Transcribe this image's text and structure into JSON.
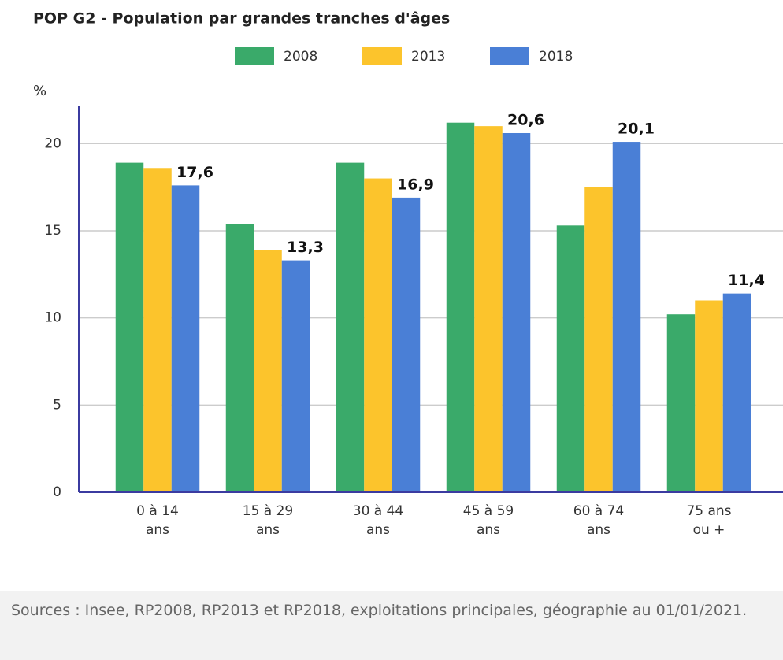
{
  "chart_data": {
    "type": "bar",
    "title": "POP G2 - Population par grandes tranches d'âges",
    "ylabel": "%",
    "categories": [
      "0 à 14 ans",
      "15 à 29 ans",
      "30 à 44 ans",
      "45 à 59 ans",
      "60 à 74 ans",
      "75 ans ou +"
    ],
    "series": [
      {
        "name": "2008",
        "color": "#3aaa6a",
        "values": [
          18.9,
          15.4,
          18.9,
          21.2,
          15.3,
          10.2
        ]
      },
      {
        "name": "2013",
        "color": "#fcc42c",
        "values": [
          18.6,
          13.9,
          18.0,
          21.0,
          17.5,
          11.0
        ]
      },
      {
        "name": "2018",
        "color": "#4a7fd6",
        "values": [
          17.6,
          13.3,
          16.9,
          20.6,
          20.1,
          11.4
        ],
        "value_labels": [
          "17,6",
          "13,3",
          "16,9",
          "20,6",
          "20,1",
          "11,4"
        ]
      }
    ],
    "ylim": [
      0,
      22
    ],
    "yticks": [
      0,
      5,
      10,
      15,
      20
    ],
    "grid": true,
    "legend": "top",
    "source": "Sources : Insee, RP2008, RP2013 et RP2018, exploitations principales, géographie au 01/01/2021."
  }
}
